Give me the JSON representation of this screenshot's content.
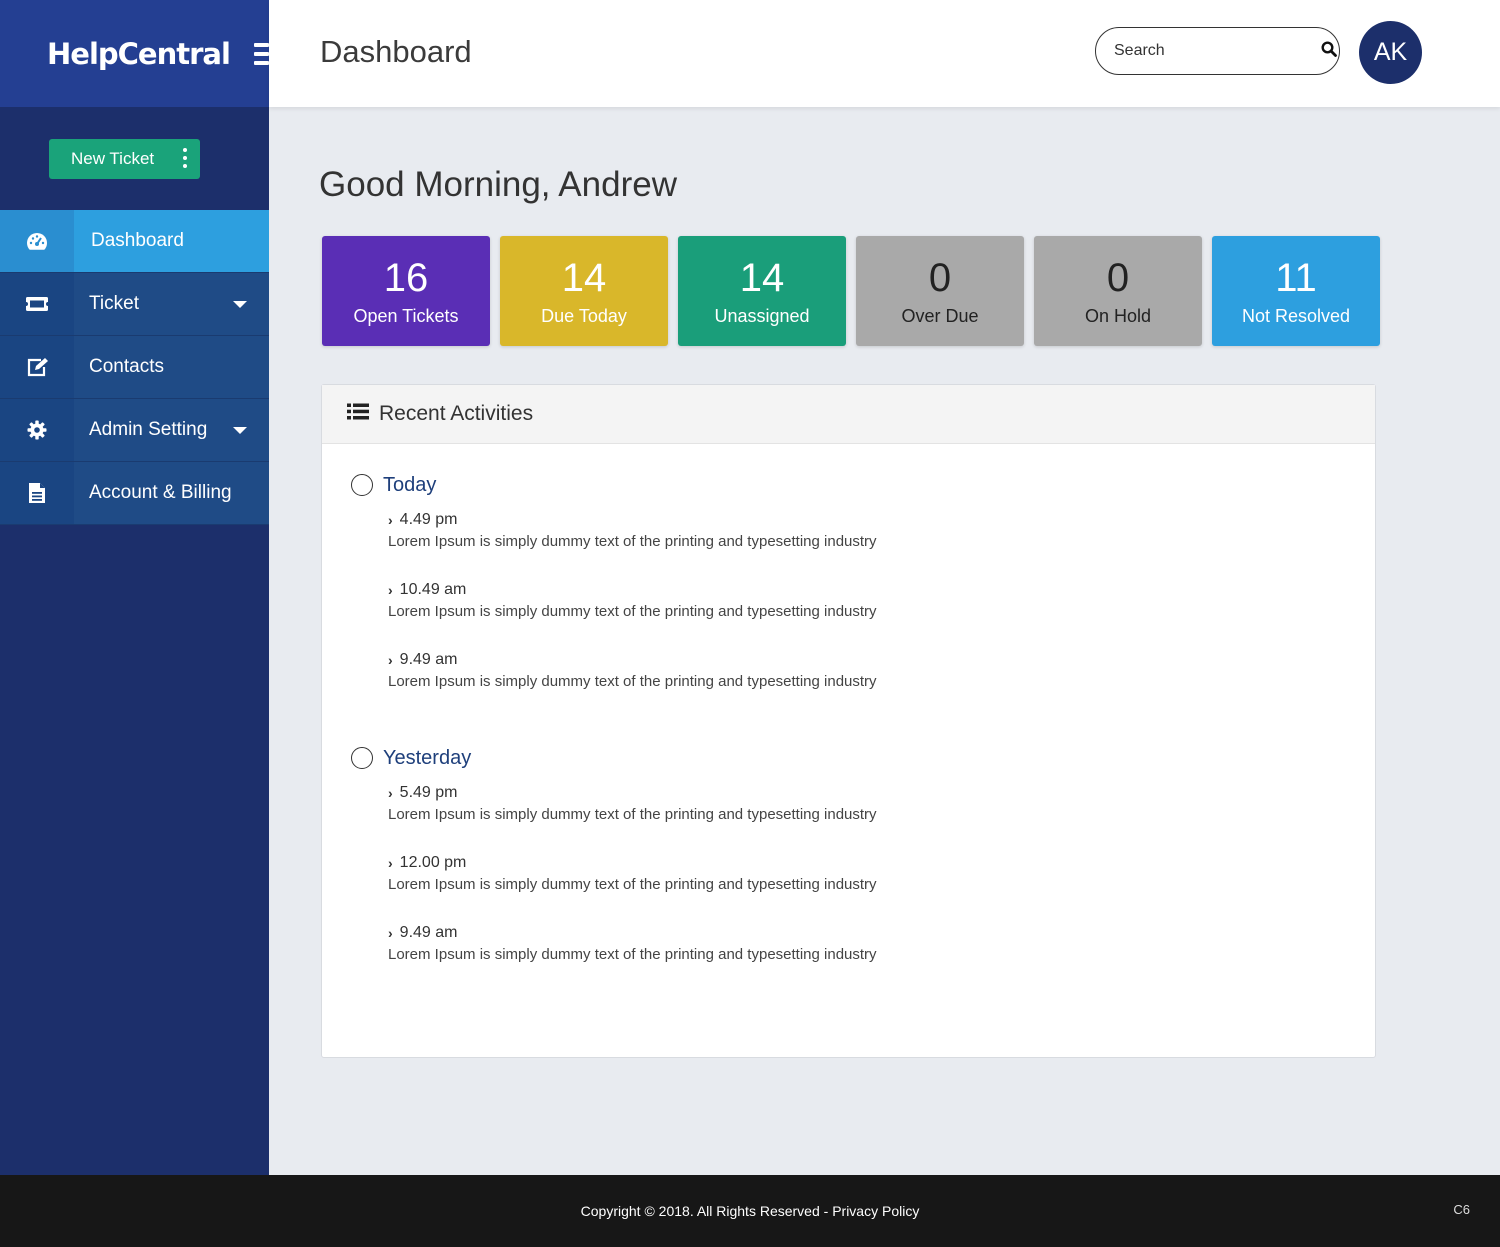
{
  "brand": {
    "name": "HelpCentral"
  },
  "sidebar": {
    "new_ticket_label": "New Ticket",
    "items": [
      {
        "label": "Dashboard",
        "icon": "dashboard-icon",
        "active": true
      },
      {
        "label": "Ticket",
        "icon": "ticket-icon",
        "dropdown": true
      },
      {
        "label": "Contacts",
        "icon": "edit-icon"
      },
      {
        "label": "Admin Setting",
        "icon": "gear-icon",
        "dropdown": true
      },
      {
        "label": "Account & Billing",
        "icon": "document-icon"
      }
    ]
  },
  "header": {
    "title": "Dashboard",
    "search_placeholder": "Search",
    "avatar_initials": "AK"
  },
  "main": {
    "greeting": "Good Morning, Andrew",
    "stats": [
      {
        "value": "16",
        "label": "Open Tickets",
        "color": "#5a2eb5",
        "text_color": "#ffffff"
      },
      {
        "value": "14",
        "label": "Due Today",
        "color": "#d9b72a",
        "text_color": "#ffffff"
      },
      {
        "value": "14",
        "label": "Unassigned",
        "color": "#1a9e7a",
        "text_color": "#ffffff"
      },
      {
        "value": "0",
        "label": "Over Due",
        "color": "#a9a9a9",
        "text_color": "#222222"
      },
      {
        "value": "0",
        "label": "On Hold",
        "color": "#a9a9a9",
        "text_color": "#222222"
      },
      {
        "value": "11",
        "label": "Not Resolved",
        "color": "#2d9fdf",
        "text_color": "#ffffff"
      }
    ],
    "activities": {
      "title": "Recent Activities",
      "groups": [
        {
          "title": "Today",
          "entries": [
            {
              "time": "4.49 pm",
              "text": "Lorem Ipsum is simply dummy text of the printing and typesetting industry"
            },
            {
              "time": "10.49 am",
              "text": "Lorem Ipsum is simply dummy text of the printing and typesetting industry"
            },
            {
              "time": "9.49 am",
              "text": "Lorem Ipsum is simply dummy text of the printing and typesetting industry"
            }
          ]
        },
        {
          "title": "Yesterday",
          "entries": [
            {
              "time": "5.49 pm",
              "text": "Lorem Ipsum is simply dummy text of the printing and typesetting industry"
            },
            {
              "time": "12.00 pm",
              "text": "Lorem Ipsum is simply dummy text of the printing and typesetting industry"
            },
            {
              "time": "9.49 am",
              "text": "Lorem Ipsum is simply dummy text of the printing and typesetting industry"
            }
          ]
        }
      ]
    }
  },
  "footer": {
    "copyright": "Copyright © 2018. All Rights Reserved - Privacy Policy",
    "version": "C6"
  }
}
